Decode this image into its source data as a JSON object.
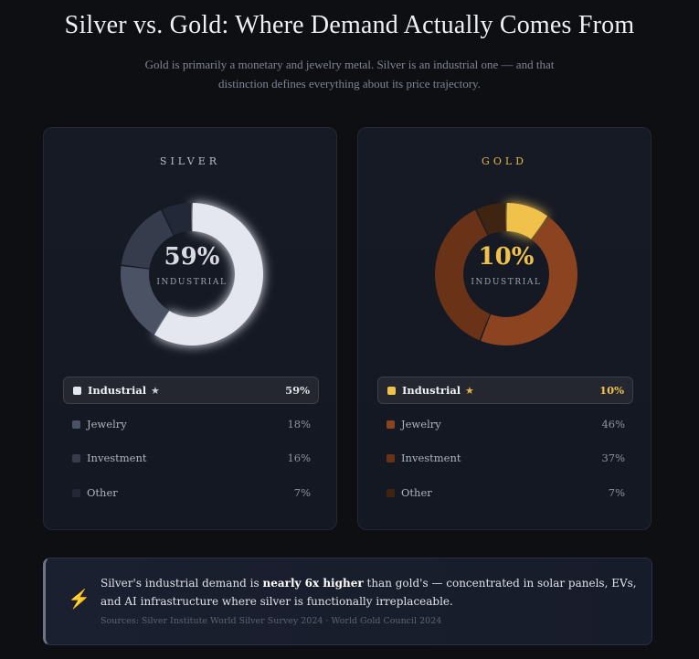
{
  "header": {
    "title": "Silver vs. Gold: Where Demand Actually Comes From",
    "subtitle": "Gold is primarily a monetary and jewelry metal. Silver is an industrial one — and that distinction defines everything about its price trajectory."
  },
  "chart_data": [
    {
      "type": "pie",
      "title": "SILVER",
      "center_value": "59%",
      "center_label": "INDUSTRIAL",
      "categories": [
        "Industrial",
        "Jewelry",
        "Investment",
        "Other"
      ],
      "values": [
        59,
        18,
        16,
        7
      ],
      "value_labels": [
        "59%",
        "18%",
        "16%",
        "7%"
      ],
      "highlighted": "Industrial",
      "star": "★",
      "colors": [
        "#e4e7ef",
        "#4b5264",
        "#363c4c",
        "#232838"
      ],
      "accent": "#c9ccd4"
    },
    {
      "type": "pie",
      "title": "GOLD",
      "center_value": "10%",
      "center_label": "INDUSTRIAL",
      "categories": [
        "Industrial",
        "Jewelry",
        "Investment",
        "Other"
      ],
      "values": [
        10,
        46,
        37,
        7
      ],
      "value_labels": [
        "10%",
        "46%",
        "37%",
        "7%"
      ],
      "highlighted": "Industrial",
      "star": "★",
      "colors": [
        "#f0c24c",
        "#8c4320",
        "#6a3317",
        "#3f2411"
      ],
      "accent": "#e2b64a"
    }
  ],
  "callout": {
    "icon": "lightning-bolt-icon",
    "text_before": "Silver's industrial demand is ",
    "text_bold": "nearly 6x higher",
    "text_after": " than gold's — concentrated in solar panels, EVs, and AI infrastructure where silver is functionally irreplaceable.",
    "sources": "Sources: Silver Institute World Silver Survey 2024 · World Gold Council 2024"
  }
}
